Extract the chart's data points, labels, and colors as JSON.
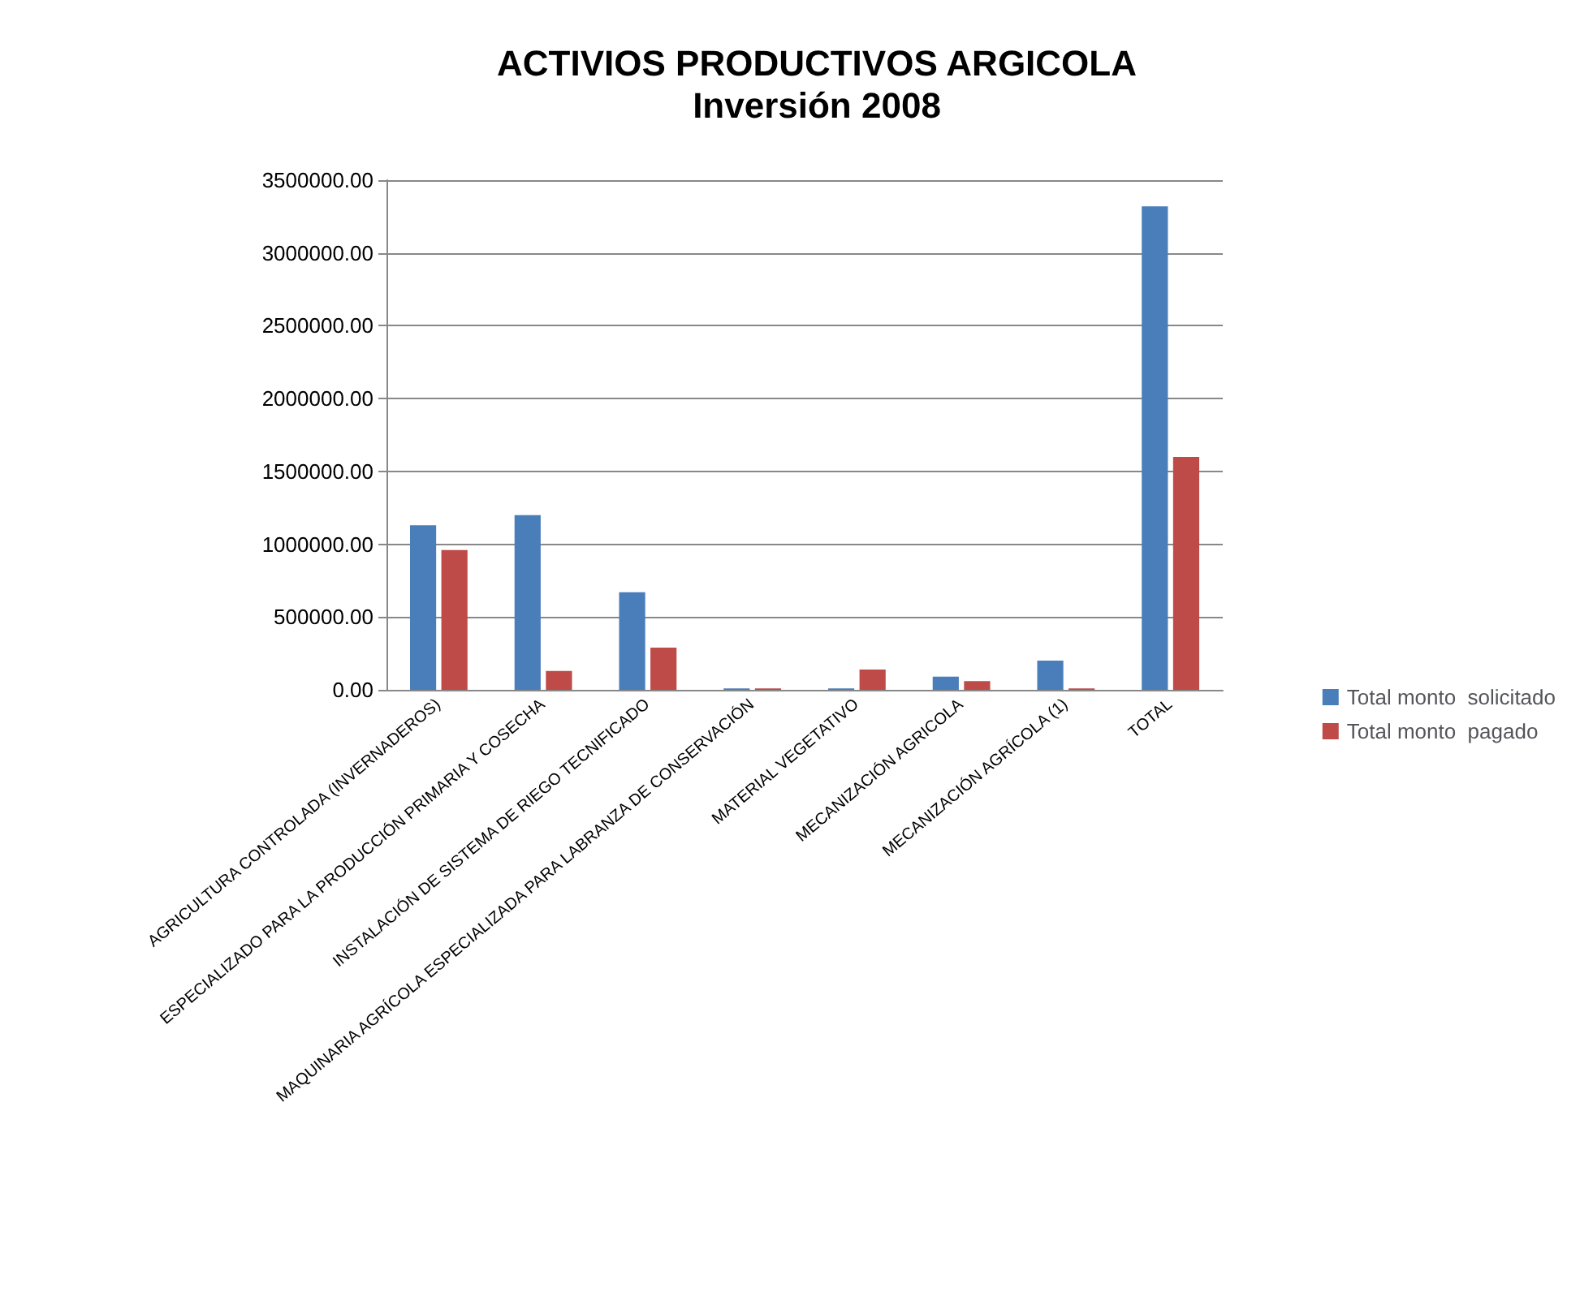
{
  "chart_data": {
    "type": "bar",
    "title": "ACTIVIOS PRODUCTIVOS ARGICOLA",
    "subtitle": "Inversión 2008",
    "categories": [
      "AGRICULTURA CONTROLADA (INVERNADEROS)",
      "ESPECIALIZADO PARA LA PRODUCCIÓN PRIMARIA Y COSECHA",
      "INSTALACIÓN DE SISTEMA DE RIEGO TECNIFICADO",
      "MAQUINARIA AGRÍCOLA ESPECIALIZADA PARA LABRANZA DE CONSERVACIÓN",
      "MATERIAL VEGETATIVO",
      "MECANIZACIÓN AGRICOLA",
      "MECANIZACIÓN AGRÍCOLA (1)",
      "TOTAL"
    ],
    "series": [
      {
        "name": "Total monto  solicitado",
        "color": "#4a7ebb",
        "values": [
          1130000,
          1200000,
          670000,
          10000,
          10000,
          90000,
          200000,
          3320000
        ]
      },
      {
        "name": "Total monto  pagado",
        "color": "#be4b48",
        "values": [
          960000,
          130000,
          290000,
          10000,
          140000,
          60000,
          10000,
          1600000
        ]
      }
    ],
    "ylim": [
      0,
      3500000
    ],
    "yticks": [
      {
        "value": 0,
        "label": "0.00"
      },
      {
        "value": 500000,
        "label": "500000.00"
      },
      {
        "value": 1000000,
        "label": "1000000.00"
      },
      {
        "value": 1500000,
        "label": "1500000.00"
      },
      {
        "value": 2000000,
        "label": "2000000.00"
      },
      {
        "value": 2500000,
        "label": "2500000.00"
      },
      {
        "value": 3000000,
        "label": "3000000.00"
      },
      {
        "value": 3500000,
        "label": "3500000.00"
      }
    ],
    "grid": "y",
    "legend": "right"
  }
}
